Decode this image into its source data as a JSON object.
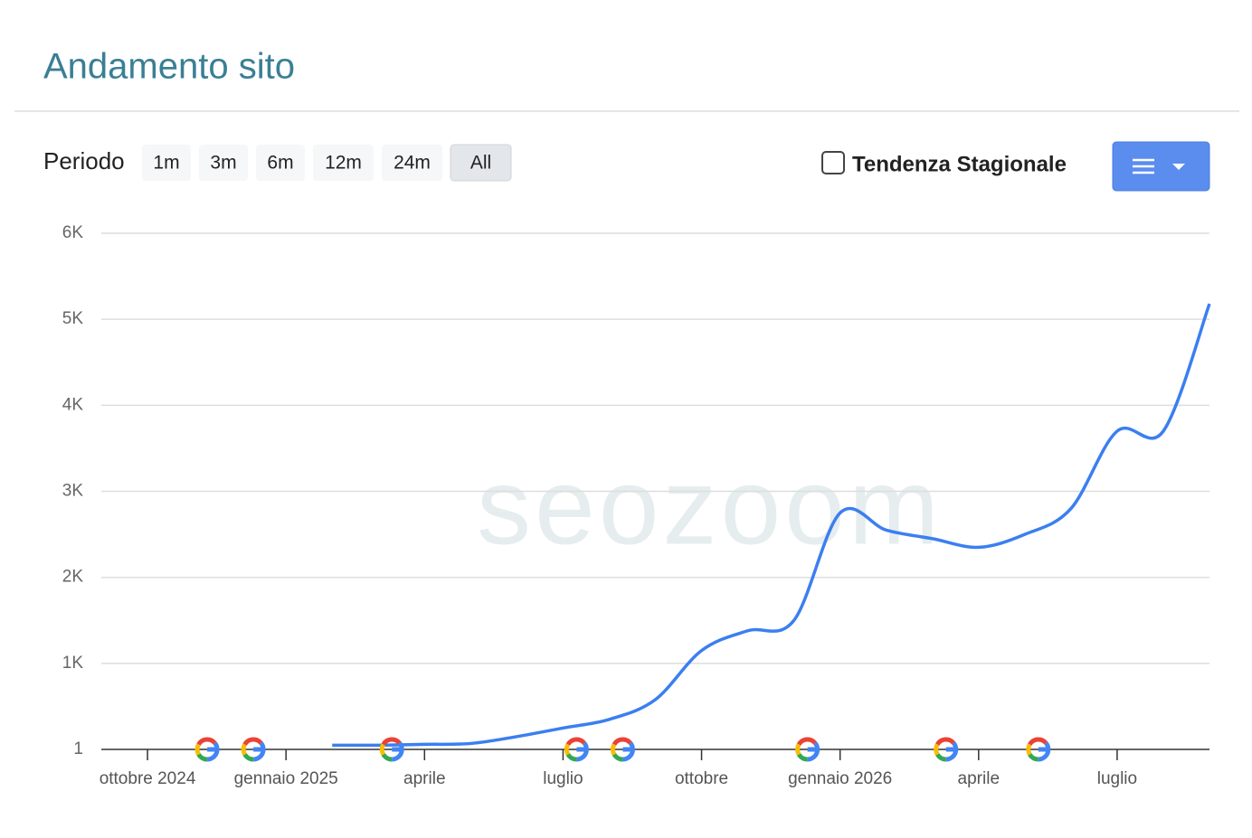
{
  "header": {
    "title": "Andamento sito"
  },
  "toolbar": {
    "period_label": "Periodo",
    "periods": [
      "1m",
      "3m",
      "6m",
      "12m",
      "24m",
      "All"
    ],
    "active_period": 5,
    "checkbox_label": "Tendenza Stagionale",
    "checkbox_checked": false
  },
  "chart_data": {
    "type": "line",
    "watermark": "seozoom",
    "x": [
      "2025-02",
      "2025-03",
      "2025-04",
      "2025-05",
      "2025-06",
      "2025-07",
      "2025-08",
      "2025-09",
      "2025-10",
      "2025-11",
      "2025-12",
      "2026-01",
      "2026-02",
      "2026-03",
      "2026-04",
      "2026-05",
      "2026-06",
      "2026-07",
      "2026-08",
      "2026-09"
    ],
    "series": [
      {
        "color": "#3b7ff0",
        "values": [
          50,
          50,
          60,
          70,
          150,
          250,
          350,
          580,
          1150,
          1380,
          1500,
          2750,
          2550,
          2450,
          2350,
          2500,
          2800,
          3700,
          3700,
          5180
        ]
      }
    ],
    "google_updates": [
      "2024-11",
      "2024-12",
      "2025-03",
      "2025-07",
      "2025-08",
      "2025-12",
      "2026-03",
      "2026-05"
    ],
    "xlim": [
      "2024-09",
      "2026-09"
    ],
    "xticks": [
      {
        "value": "2024-10",
        "label": "ottobre 2024"
      },
      {
        "value": "2025-01",
        "label": "gennaio 2025"
      },
      {
        "value": "2025-04",
        "label": "aprile"
      },
      {
        "value": "2025-07",
        "label": "luglio"
      },
      {
        "value": "2025-10",
        "label": "ottobre"
      },
      {
        "value": "2026-01",
        "label": "gennaio 2026"
      },
      {
        "value": "2026-04",
        "label": "aprile"
      },
      {
        "value": "2026-07",
        "label": "luglio"
      }
    ],
    "ylim": [
      1,
      6000
    ],
    "yticks": [
      1,
      {
        "value": 1000,
        "label": "1K"
      },
      {
        "value": 2000,
        "label": "2K"
      },
      {
        "value": 3000,
        "label": "3K"
      },
      {
        "value": 4000,
        "label": "4K"
      },
      {
        "value": 5000,
        "label": "5K"
      },
      {
        "value": 6000,
        "label": "6K"
      }
    ],
    "grid": true
  }
}
